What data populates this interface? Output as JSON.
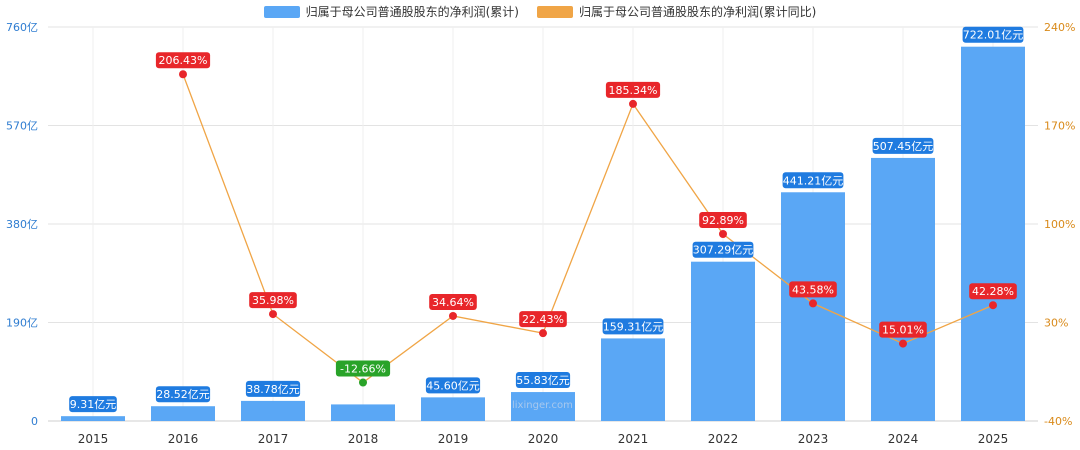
{
  "legend": {
    "bar_label": "归属于母公司普通股股东的净利润(累计)",
    "line_label": "归属于母公司普通股股东的净利润(累计同比)"
  },
  "watermark": "lixinger.com",
  "colors": {
    "bar": "#5aa7f5",
    "bar_label_bg": "#1f7be0",
    "line": "#f0a546",
    "point_pos": "#e8262a",
    "point_neg": "#29a329",
    "left_axis_text": "#2f7dd1",
    "right_axis_text": "#d98a1a",
    "grid": "#e3e3e3"
  },
  "chart_data": {
    "type": "bar",
    "categories": [
      "2015",
      "2016",
      "2017",
      "2018",
      "2019",
      "2020",
      "2021",
      "2022",
      "2023",
      "2024",
      "2025"
    ],
    "series": [
      {
        "name": "归属于母公司普通股股东的净利润(累计)",
        "type": "bar",
        "axis": "left",
        "values": [
          9.31,
          28.52,
          38.78,
          32.0,
          45.6,
          55.83,
          159.31,
          307.29,
          441.21,
          507.45,
          722.01
        ],
        "labels": [
          "9.31亿元",
          "28.52亿元",
          "38.78亿元",
          "",
          "45.60亿元",
          "55.83亿元",
          "159.31亿元",
          "307.29亿元",
          "441.21亿元",
          "507.45亿元",
          "722.01亿元"
        ]
      },
      {
        "name": "归属于母公司普通股股东的净利润(累计同比)",
        "type": "line",
        "axis": "right",
        "values": [
          null,
          206.43,
          35.98,
          -12.66,
          34.64,
          22.43,
          185.34,
          92.89,
          43.58,
          15.01,
          42.28
        ],
        "labels": [
          "",
          "206.43%",
          "35.98%",
          "-12.66%",
          "34.64%",
          "22.43%",
          "185.34%",
          "92.89%",
          "43.58%",
          "15.01%",
          "42.28%"
        ]
      }
    ],
    "left_axis": {
      "ylim": [
        0,
        760
      ],
      "ticks": [
        0,
        190,
        380,
        570,
        760
      ],
      "tick_labels": [
        "0",
        "190亿",
        "380亿",
        "570亿",
        "760亿"
      ]
    },
    "right_axis": {
      "ylim": [
        -40,
        240
      ],
      "ticks": [
        -40,
        30,
        100,
        170,
        240
      ],
      "tick_labels": [
        "-40%",
        "30%",
        "100%",
        "170%",
        "240%"
      ]
    },
    "legend_position": "top-center",
    "grid": true
  }
}
